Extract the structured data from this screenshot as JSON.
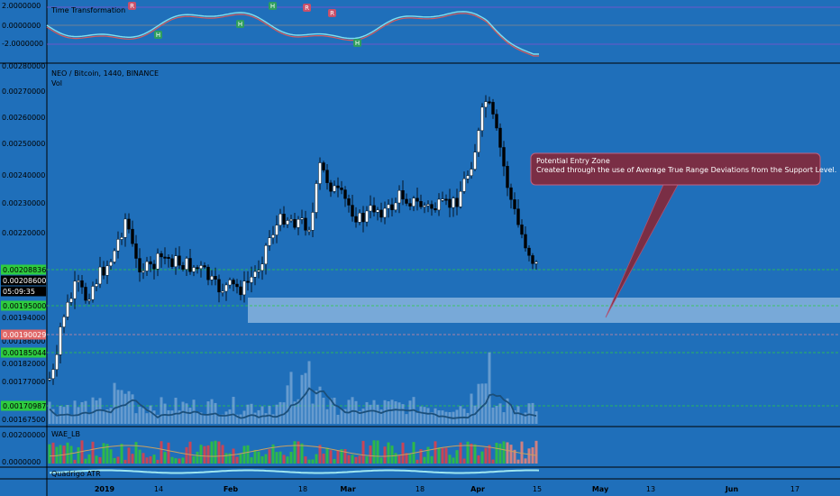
{
  "indicator_top": {
    "name": "Time Transformation",
    "scale": [
      "2.0000000",
      "0.0000000",
      "-2.0000000"
    ],
    "markers": [
      {
        "kind": "R",
        "label": "R"
      },
      {
        "kind": "H",
        "label": "H"
      },
      {
        "kind": "H",
        "label": "H"
      },
      {
        "kind": "H",
        "label": "H"
      },
      {
        "kind": "R",
        "label": "R"
      },
      {
        "kind": "R",
        "label": "R"
      },
      {
        "kind": "H",
        "label": "H"
      }
    ]
  },
  "main": {
    "symbol": "NEO / Bitcoin, 1440, BINANCE",
    "sub": "Vol",
    "price_axis": [
      "0.00280000",
      "0.00270000",
      "0.00260000",
      "0.00250000",
      "0.00240000",
      "0.00230000",
      "0.00220000",
      "0.00200000",
      "0.00194000",
      "0.00188000",
      "0.00182000",
      "0.00177000",
      "0.00167500"
    ],
    "tags": [
      {
        "text": "0.00208836",
        "bg": "#2ecc40",
        "fg": "#000"
      },
      {
        "text": "0.00208600",
        "bg": "#000000",
        "fg": "#fff"
      },
      {
        "text": "05:09:35",
        "bg": "#000000",
        "fg": "#fff"
      },
      {
        "text": "0.00195000",
        "bg": "#2ecc40",
        "fg": "#000"
      },
      {
        "text": "0.00190029",
        "bg": "#e06666",
        "fg": "#fff"
      },
      {
        "text": "0.00185044",
        "bg": "#2ecc40",
        "fg": "#000"
      },
      {
        "text": "0.00170987",
        "bg": "#2ecc40",
        "fg": "#000"
      }
    ],
    "annotation": {
      "line1": "Potential Entry Zone",
      "line2": "Created through the use of Average True Range Deviations from the Support Level."
    }
  },
  "wae": {
    "name": "WAE_LB",
    "scale": [
      "0.00200000",
      "0.0000000"
    ]
  },
  "atr": {
    "name": "Quadrigo ATR"
  },
  "time_axis": [
    "2019",
    "14",
    "Feb",
    "18",
    "Mar",
    "18",
    "Apr",
    "15",
    "May",
    "13",
    "Jun",
    "17"
  ],
  "colors": {
    "up": "#ffffff",
    "down": "#000000",
    "bg": "#1f6fba",
    "zone": "#8fb8e0"
  }
}
